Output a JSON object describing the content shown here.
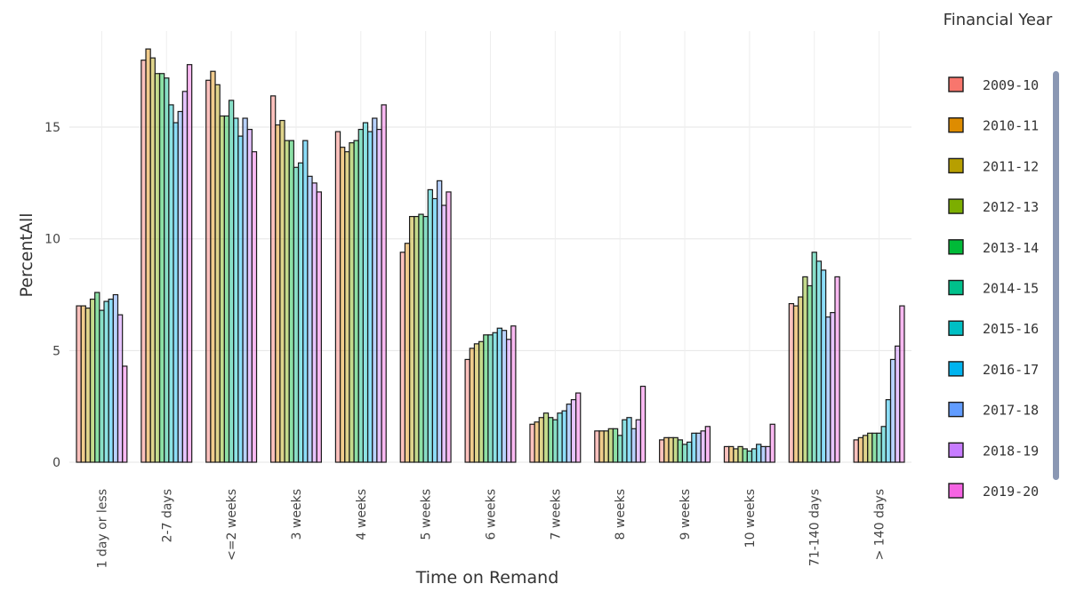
{
  "chart_data": {
    "type": "bar",
    "xlabel": "Time on Remand",
    "ylabel": "PercentAll",
    "ylim": [
      0,
      19.3
    ],
    "yticks": [
      0,
      5,
      10,
      15
    ],
    "grid": true,
    "legend": {
      "title": "Financial Year",
      "placement": "right"
    },
    "categories": [
      "1 day or less",
      "2-7 days",
      "<=2 weeks",
      "3 weeks",
      "4 weeks",
      "5 weeks",
      "6 weeks",
      "7 weeks",
      "8 weeks",
      "9 weeks",
      "10 weeks",
      "71-140 days",
      "> 140 days"
    ],
    "series": [
      {
        "name": "2009-10",
        "color": "#f8766d",
        "values": [
          7.0,
          18.0,
          17.1,
          16.4,
          14.8,
          9.4,
          4.6,
          1.7,
          1.4,
          1.0,
          0.7,
          7.1,
          1.0
        ]
      },
      {
        "name": "2010-11",
        "color": "#de8c00",
        "values": [
          7.0,
          18.5,
          17.5,
          15.1,
          14.1,
          9.8,
          5.1,
          1.8,
          1.4,
          1.1,
          0.7,
          7.0,
          1.1
        ]
      },
      {
        "name": "2011-12",
        "color": "#b79f00",
        "values": [
          6.9,
          18.1,
          16.9,
          15.3,
          13.9,
          11.0,
          5.3,
          2.0,
          1.4,
          1.1,
          0.6,
          7.4,
          1.2
        ]
      },
      {
        "name": "2012-13",
        "color": "#7cae00",
        "values": [
          7.3,
          17.4,
          15.5,
          14.4,
          14.3,
          11.0,
          5.4,
          2.2,
          1.5,
          1.1,
          0.7,
          8.3,
          1.3
        ]
      },
      {
        "name": "2013-14",
        "color": "#00ba38",
        "values": [
          7.6,
          17.4,
          15.5,
          14.4,
          14.4,
          11.1,
          5.7,
          2.0,
          1.5,
          1.0,
          0.6,
          7.9,
          1.3
        ]
      },
      {
        "name": "2014-15",
        "color": "#00c08b",
        "values": [
          6.8,
          17.2,
          16.2,
          13.2,
          14.9,
          11.0,
          5.7,
          1.9,
          1.2,
          0.8,
          0.5,
          9.4,
          1.3
        ]
      },
      {
        "name": "2015-16",
        "color": "#00bfc4",
        "values": [
          7.2,
          16.0,
          15.4,
          13.4,
          15.2,
          12.2,
          5.8,
          2.2,
          1.9,
          0.9,
          0.6,
          9.0,
          1.6
        ]
      },
      {
        "name": "2016-17",
        "color": "#00b4f0",
        "values": [
          7.3,
          15.2,
          14.6,
          14.4,
          14.8,
          11.8,
          6.0,
          2.3,
          2.0,
          1.3,
          0.8,
          8.6,
          2.8
        ]
      },
      {
        "name": "2017-18",
        "color": "#619cff",
        "values": [
          7.5,
          15.7,
          15.4,
          12.8,
          15.4,
          12.6,
          5.9,
          2.6,
          1.5,
          1.3,
          0.7,
          6.5,
          4.6
        ]
      },
      {
        "name": "2018-19",
        "color": "#c77cff",
        "values": [
          6.6,
          16.6,
          14.9,
          12.5,
          14.9,
          11.5,
          5.5,
          2.8,
          1.9,
          1.4,
          0.7,
          6.7,
          5.2
        ]
      },
      {
        "name": "2019-20",
        "color": "#f564e3",
        "values": [
          4.3,
          17.8,
          13.9,
          12.1,
          16.0,
          12.1,
          6.1,
          3.1,
          3.4,
          1.6,
          1.7,
          8.3,
          7.0
        ]
      }
    ]
  }
}
